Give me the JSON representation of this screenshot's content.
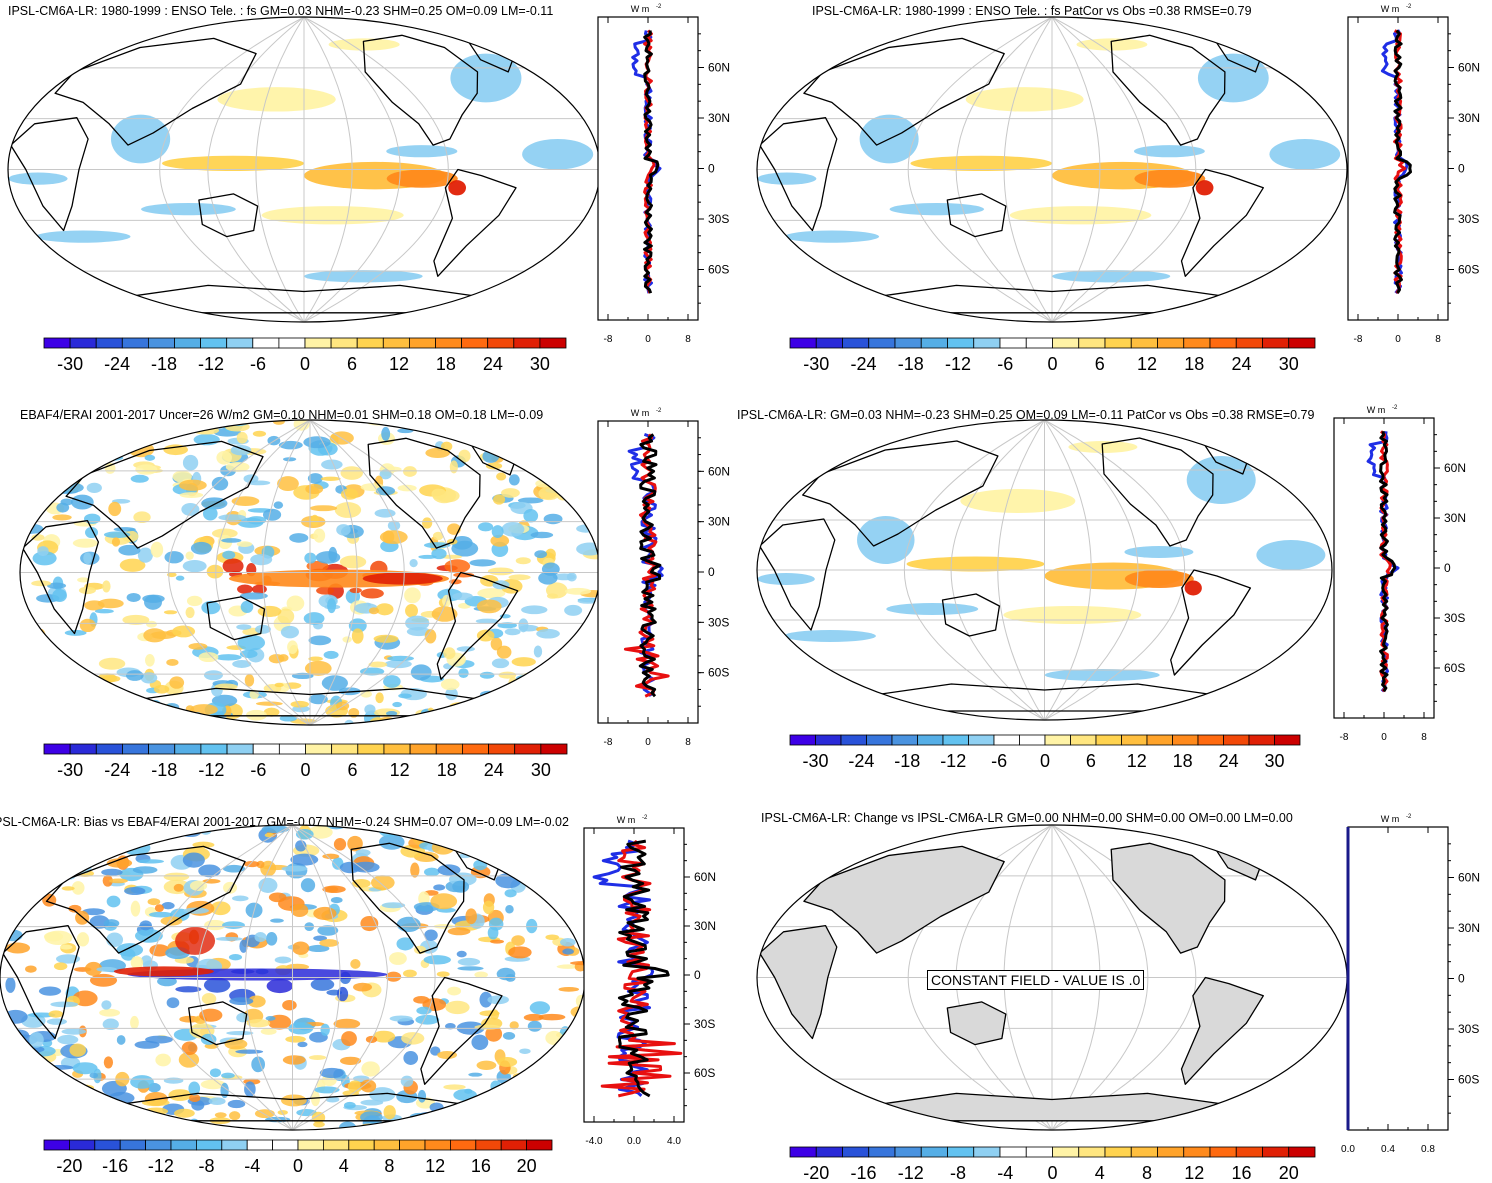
{
  "colorbar_colors": [
    "#3d00e6",
    "#2a2ad8",
    "#2952d9",
    "#3775dc",
    "#4a93e0",
    "#55aee6",
    "#62c2f0",
    "#8fd0f2",
    "#ffffff",
    "#ffffff",
    "#fff3a6",
    "#ffe680",
    "#ffd34f",
    "#ffbf3f",
    "#ffa32a",
    "#ff8a1c",
    "#ff6a10",
    "#f24808",
    "#e02005",
    "#cc0000"
  ],
  "land_color": "#d9d9d9",
  "constant_field_label": "CONSTANT FIELD - VALUE IS .0",
  "profile_unit": "W m",
  "profile_unit_sup": "-2",
  "lat_ticks": [
    "60N",
    "30N",
    "0",
    "30S",
    "60S"
  ],
  "chart_data": [
    {
      "id": "p1",
      "type": "heatmap",
      "title": "IPSL-CM6A-LR: 1980-1999 : ENSO Tele. : fs GM=0.03 NHM=-0.23 SHM=0.25 OM=0.09 LM=-0.11",
      "colorbar_labels": [
        "-30",
        "-24",
        "-18",
        "-12",
        "-6",
        "0",
        "6",
        "12",
        "18",
        "24",
        "30"
      ],
      "colorbar_range": [
        -30,
        30
      ],
      "profile": {
        "xlim": [
          -10,
          10
        ],
        "xticks": [
          "-8",
          "0",
          "8"
        ],
        "ylim": [
          -90,
          90
        ],
        "series": [
          "blue",
          "red",
          "black"
        ]
      }
    },
    {
      "id": "p2",
      "type": "heatmap",
      "title": "IPSL-CM6A-LR: 1980-1999 : ENSO Tele. : fs PatCor vs Obs =0.38 RMSE=0.79",
      "colorbar_labels": [
        "-30",
        "-24",
        "-18",
        "-12",
        "-6",
        "0",
        "6",
        "12",
        "18",
        "24",
        "30"
      ],
      "colorbar_range": [
        -30,
        30
      ],
      "profile": {
        "xlim": [
          -10,
          10
        ],
        "xticks": [
          "-8",
          "0",
          "8"
        ],
        "ylim": [
          -90,
          90
        ],
        "series": [
          "blue",
          "red",
          "black"
        ]
      }
    },
    {
      "id": "p3",
      "type": "heatmap",
      "title": "EBAF4/ERAI 2001-2017 Uncer=26 W/m2 GM=0.10 NHM=0.01 SHM=0.18 OM=0.18 LM=-0.09",
      "colorbar_labels": [
        "-30",
        "-24",
        "-18",
        "-12",
        "-6",
        "0",
        "6",
        "12",
        "18",
        "24",
        "30"
      ],
      "colorbar_range": [
        -30,
        30
      ],
      "profile": {
        "xlim": [
          -10,
          10
        ],
        "xticks": [
          "-8",
          "0",
          "8"
        ],
        "ylim": [
          -90,
          90
        ],
        "series": [
          "blue",
          "red",
          "black"
        ]
      }
    },
    {
      "id": "p4",
      "type": "heatmap",
      "title": "IPSL-CM6A-LR: GM=0.03 NHM=-0.23 SHM=0.25 OM=0.09 LM=-0.11 PatCor vs Obs =0.38 RMSE=0.79",
      "colorbar_labels": [
        "-30",
        "-24",
        "-18",
        "-12",
        "-6",
        "0",
        "6",
        "12",
        "18",
        "24",
        "30"
      ],
      "colorbar_range": [
        -30,
        30
      ],
      "profile": {
        "xlim": [
          -10,
          10
        ],
        "xticks": [
          "-8",
          "0",
          "8"
        ],
        "ylim": [
          -90,
          90
        ],
        "series": [
          "blue",
          "red",
          "black"
        ]
      }
    },
    {
      "id": "p5",
      "type": "heatmap",
      "title": "PSL-CM6A-LR: Bias vs EBAF4/ERAI 2001-2017 GM=-0.07 NHM=-0.24 SHM=0.07 OM=-0.09 LM=-0.02",
      "colorbar_labels": [
        "-20",
        "-16",
        "-12",
        "-8",
        "-4",
        "0",
        "4",
        "8",
        "12",
        "16",
        "20"
      ],
      "colorbar_range": [
        -20,
        20
      ],
      "profile": {
        "xlim": [
          -5,
          5
        ],
        "xticks": [
          "-4.0",
          "0.0",
          "4.0"
        ],
        "ylim": [
          -90,
          90
        ],
        "series": [
          "blue",
          "red",
          "black"
        ]
      }
    },
    {
      "id": "p6",
      "type": "heatmap",
      "title": "IPSL-CM6A-LR: Change vs IPSL-CM6A-LR GM=0.00 NHM=0.00 SHM=0.00 OM=0.00 LM=0.00",
      "colorbar_labels": [
        "-20",
        "-16",
        "-12",
        "-8",
        "-4",
        "0",
        "4",
        "8",
        "12",
        "16",
        "20"
      ],
      "colorbar_range": [
        -20,
        20
      ],
      "profile": {
        "xlim": [
          0,
          1
        ],
        "xticks": [
          "0.0",
          "0.4",
          "0.8"
        ],
        "ylim": [
          -90,
          90
        ],
        "series": [
          "blue"
        ]
      }
    }
  ]
}
